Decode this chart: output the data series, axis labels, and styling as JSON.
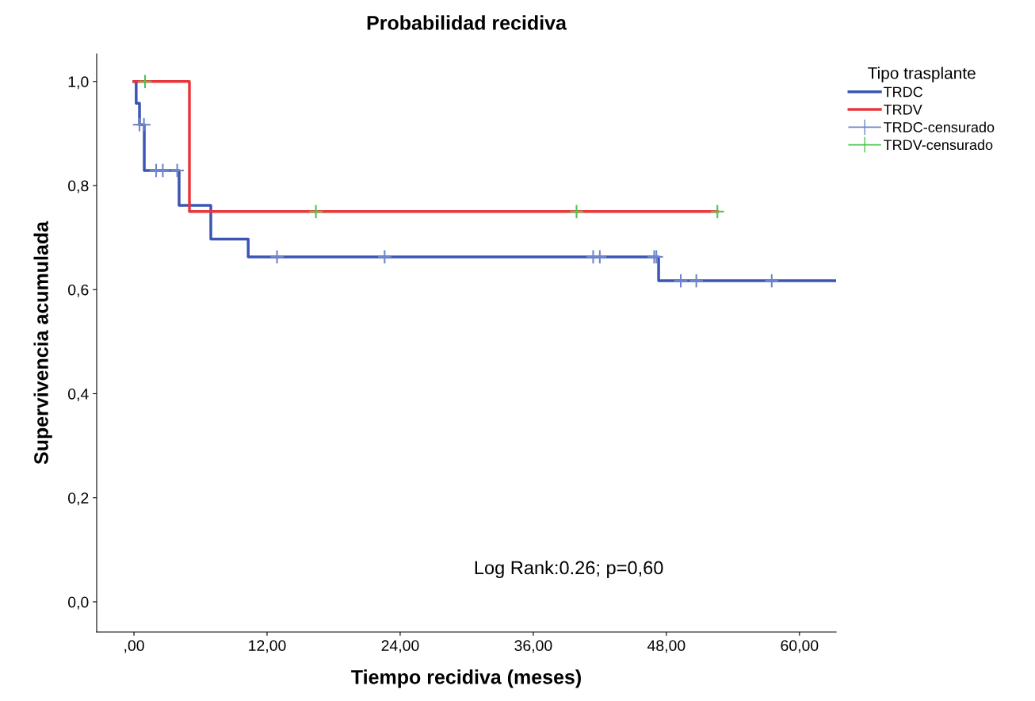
{
  "chart_data": {
    "type": "step",
    "title": "Probabilidad recidiva",
    "xlabel": "Tiempo recidiva (meses)",
    "ylabel": "Supervivencia acumulada",
    "legend_title": "Tipo trasplante",
    "series": [
      {
        "name": "TRDC",
        "color": "#3a55b4",
        "x": [
          0,
          0.2,
          0.5,
          0.93,
          4.07,
          6.93,
          10.3,
          47.3,
          63.3
        ],
        "values": [
          1.0,
          0.958,
          0.917,
          0.829,
          0.762,
          0.697,
          0.663,
          0.617,
          0.617
        ]
      },
      {
        "name": "TRDV",
        "color": "#e8363a",
        "x": [
          0,
          5.0,
          52.6
        ],
        "values": [
          1.0,
          0.75,
          0.75
        ]
      },
      {
        "name": "TRDC-censurado",
        "type": "scatter",
        "marker": "cross",
        "color": "#6f86cc",
        "x": [
          0.5,
          0.9,
          2.0,
          2.6,
          3.9,
          12.9,
          22.6,
          41.4,
          42.0,
          46.9,
          47.1,
          49.3,
          50.7,
          57.5
        ],
        "values": [
          0.917,
          0.917,
          0.829,
          0.829,
          0.829,
          0.663,
          0.663,
          0.663,
          0.663,
          0.663,
          0.663,
          0.617,
          0.617,
          0.617
        ]
      },
      {
        "name": "TRDV-censurado",
        "type": "scatter",
        "marker": "cross",
        "color": "#4fc44f",
        "x": [
          1.0,
          16.4,
          39.9,
          52.6
        ],
        "values": [
          1.0,
          0.75,
          0.75,
          0.75
        ]
      }
    ],
    "xlim": [
      -3.36,
      63.3
    ],
    "ylim": [
      -0.058,
      1.053
    ],
    "xticks": [
      {
        "value": 0,
        "label": ",00"
      },
      {
        "value": 12,
        "label": "12,00"
      },
      {
        "value": 24,
        "label": "24,00"
      },
      {
        "value": 36,
        "label": "36,00"
      },
      {
        "value": 48,
        "label": "48,00"
      },
      {
        "value": 60,
        "label": "60,00"
      }
    ],
    "yticks": [
      {
        "value": 0,
        "label": "0,0"
      },
      {
        "value": 0.2,
        "label": "0,2"
      },
      {
        "value": 0.4,
        "label": "0,4"
      },
      {
        "value": 0.6,
        "label": "0,6"
      },
      {
        "value": 0.8,
        "label": "0,8"
      },
      {
        "value": 1.0,
        "label": "1,0"
      }
    ],
    "annotations": [
      "Log Rank:0.26; p=0,60"
    ],
    "legend": "top right",
    "grid": false
  }
}
